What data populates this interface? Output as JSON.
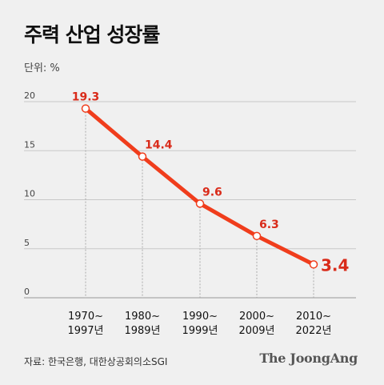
{
  "title": "주력 산업 성장률",
  "unit_label": "단위: %",
  "source": "자료: 한국은행, 대한상공회의소SGI",
  "brand": "The JoongAng",
  "colors": {
    "line": "#f03d1c",
    "label": "#d92b1a",
    "grid": "#c8c8c8",
    "background": "#f0f0f0"
  },
  "chart_data": {
    "type": "line",
    "title": "주력 산업 성장률",
    "ylabel": "단위: %",
    "xlabel": "",
    "ylim": [
      0,
      20
    ],
    "yticks": [
      0,
      5,
      10,
      15,
      20
    ],
    "grid": true,
    "categories": [
      [
        "1970~",
        "1997년"
      ],
      [
        "1980~",
        "1989년"
      ],
      [
        "1990~",
        "1999년"
      ],
      [
        "2000~",
        "2009년"
      ],
      [
        "2010~",
        "2022년"
      ]
    ],
    "values": [
      19.3,
      14.4,
      9.6,
      6.3,
      3.4
    ],
    "data_labels": [
      "19.3",
      "14.4",
      "9.6",
      "6.3",
      "3.4"
    ]
  }
}
